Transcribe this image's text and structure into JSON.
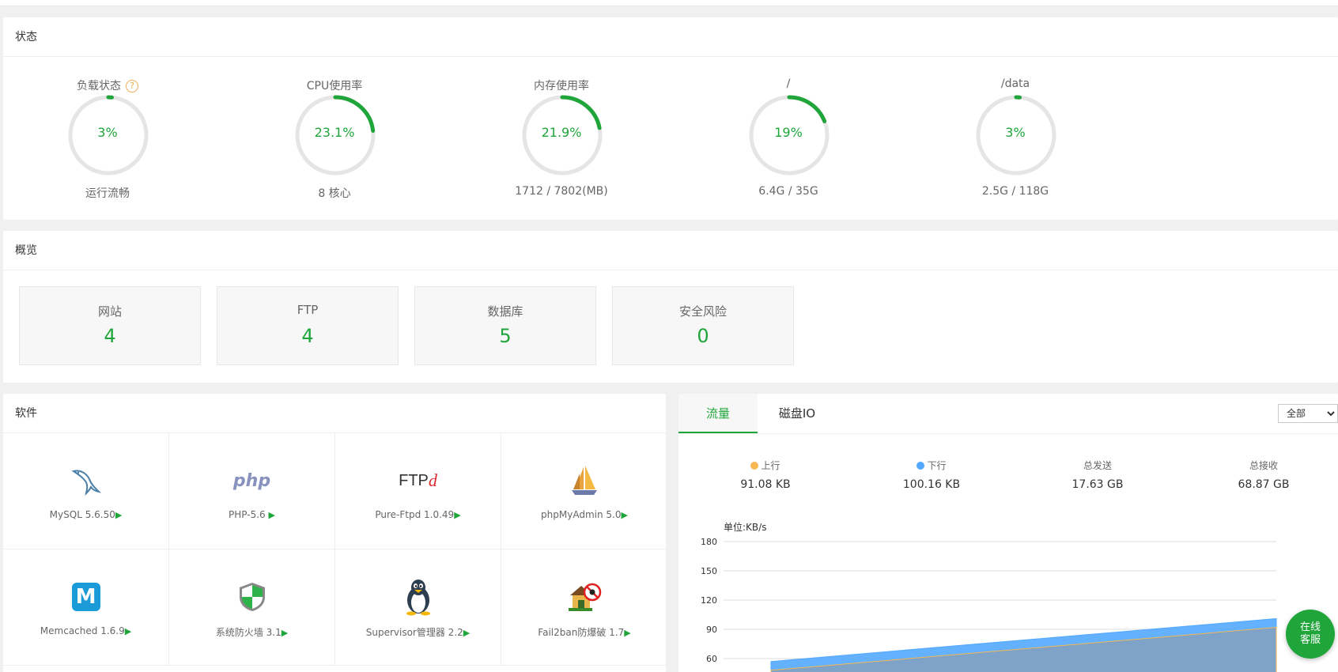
{
  "status": {
    "title": "状态",
    "gauges": [
      {
        "label": "负载状态",
        "value": "3%",
        "percent": 3,
        "sub": "运行流畅",
        "has_help": true
      },
      {
        "label": "CPU使用率",
        "value": "23.1%",
        "percent": 23.1,
        "sub": "8 核心"
      },
      {
        "label": "内存使用率",
        "value": "21.9%",
        "percent": 21.9,
        "sub": "1712 / 7802(MB)"
      },
      {
        "label": "/",
        "value": "19%",
        "percent": 19,
        "sub": "6.4G / 35G"
      },
      {
        "label": "/data",
        "value": "3%",
        "percent": 3,
        "sub": "2.5G / 118G"
      }
    ],
    "help_glyph": "?"
  },
  "overview": {
    "title": "概览",
    "items": [
      {
        "label": "网站",
        "value": "4"
      },
      {
        "label": "FTP",
        "value": "4"
      },
      {
        "label": "数据库",
        "value": "5"
      },
      {
        "label": "安全风险",
        "value": "0"
      }
    ]
  },
  "software": {
    "title": "软件",
    "items": [
      {
        "label": "MySQL 5.6.50",
        "icon": "mysql-dolphin-icon"
      },
      {
        "label": "PHP-5.6",
        "icon": "php-icon"
      },
      {
        "label": "Pure-Ftpd 1.0.49",
        "icon": "ftpd-icon"
      },
      {
        "label": "phpMyAdmin 5.0",
        "icon": "phpmyadmin-sailboat-icon"
      },
      {
        "label": "Memcached 1.6.9",
        "icon": "memcached-icon"
      },
      {
        "label": "系统防火墙 3.1",
        "icon": "firewall-shield-icon"
      },
      {
        "label": "Supervisor管理器 2.2",
        "icon": "linux-penguin-icon"
      },
      {
        "label": "Fail2ban防爆破 1.7",
        "icon": "fail2ban-icon"
      }
    ],
    "arrow": "▶",
    "php_text": "php",
    "ftp_text": "FTP",
    "ftp_d": "d",
    "mem_text": "M"
  },
  "traffic": {
    "tabs": [
      "流量",
      "磁盘IO"
    ],
    "active_tab": 0,
    "range_selected": "全部",
    "stats": [
      {
        "label": "上行",
        "value": "91.08 KB",
        "dot_color": "#f7b851"
      },
      {
        "label": "下行",
        "value": "100.16 KB",
        "dot_color": "#52a9ff"
      },
      {
        "label": "总发送",
        "value": "17.63 GB"
      },
      {
        "label": "总接收",
        "value": "68.87 GB"
      }
    ],
    "unit_label": "单位:KB/s",
    "y_ticks": [
      "180",
      "150",
      "120",
      "90",
      "60"
    ]
  },
  "chart_data": {
    "type": "area",
    "ylabel": "单位:KB/s",
    "ylim": [
      60,
      180
    ],
    "y_ticks": [
      180,
      150,
      120,
      90,
      60
    ],
    "series": [
      {
        "name": "下行",
        "color": "#52a9ff",
        "start": 57,
        "end": 101
      },
      {
        "name": "上行",
        "color": "#f7b851",
        "start": 48,
        "end": 92
      }
    ]
  },
  "online_service": "在线\n客服",
  "colors": {
    "accent": "#20a53a",
    "ring_bg": "#e5e5e5"
  }
}
